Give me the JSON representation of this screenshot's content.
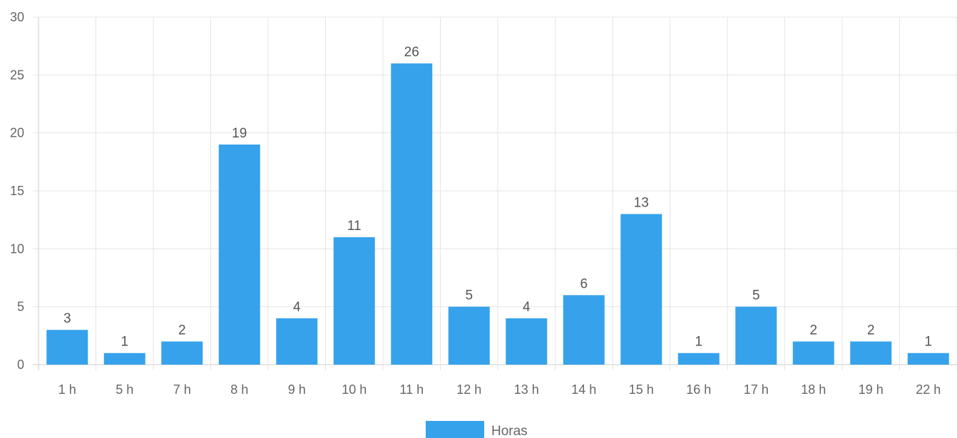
{
  "chart_data": {
    "type": "bar",
    "categories": [
      "1 h",
      "5 h",
      "7 h",
      "8 h",
      "9 h",
      "10 h",
      "11 h",
      "12 h",
      "13 h",
      "14 h",
      "15 h",
      "16 h",
      "17 h",
      "18 h",
      "19 h",
      "22 h"
    ],
    "series": [
      {
        "name": "Horas",
        "values": [
          3,
          1,
          2,
          19,
          4,
          11,
          26,
          5,
          4,
          6,
          13,
          1,
          5,
          2,
          2,
          1
        ],
        "color": "#36a2eb"
      }
    ],
    "ylim": [
      0,
      30
    ],
    "yticks": [
      0,
      5,
      10,
      15,
      20,
      25,
      30
    ],
    "grid": true,
    "legend_position": "bottom",
    "data_labels": true
  }
}
